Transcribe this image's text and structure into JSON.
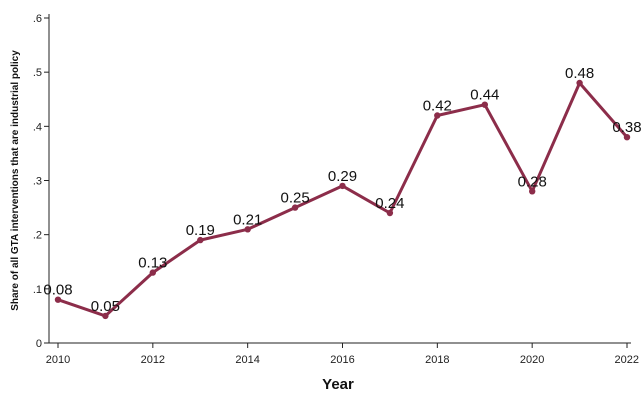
{
  "chart_data": {
    "type": "line",
    "title": "",
    "xlabel": "Year",
    "ylabel": "Share of all GTA interventions that are industrial policy",
    "x": [
      2010,
      2011,
      2012,
      2013,
      2014,
      2015,
      2016,
      2017,
      2018,
      2019,
      2020,
      2021,
      2022
    ],
    "series": [
      {
        "values": [
          0.08,
          0.05,
          0.13,
          0.19,
          0.21,
          0.25,
          0.29,
          0.24,
          0.42,
          0.44,
          0.28,
          0.48,
          0.38
        ],
        "labels": [
          "0.08",
          "0.05",
          "0.13",
          "0.19",
          "0.21",
          "0.25",
          "0.29",
          "0.24",
          "0.42",
          "0.44",
          "0.28",
          "0.48",
          "0.38"
        ]
      }
    ],
    "xticks": [
      2010,
      2012,
      2014,
      2016,
      2018,
      2020,
      2022
    ],
    "xtick_labels": [
      "2010",
      "2012",
      "2014",
      "2016",
      "2018",
      "2020",
      "2022"
    ],
    "yticks": [
      0,
      0.1,
      0.2,
      0.3,
      0.4,
      0.5,
      0.6
    ],
    "ytick_labels": [
      "0",
      ".1",
      ".2",
      ".3",
      ".4",
      ".5",
      ".6"
    ],
    "xlim": [
      2010,
      2022
    ],
    "ylim": [
      0,
      0.6
    ],
    "grid": false,
    "legend": "none",
    "line_color": "#8c2d4a"
  }
}
